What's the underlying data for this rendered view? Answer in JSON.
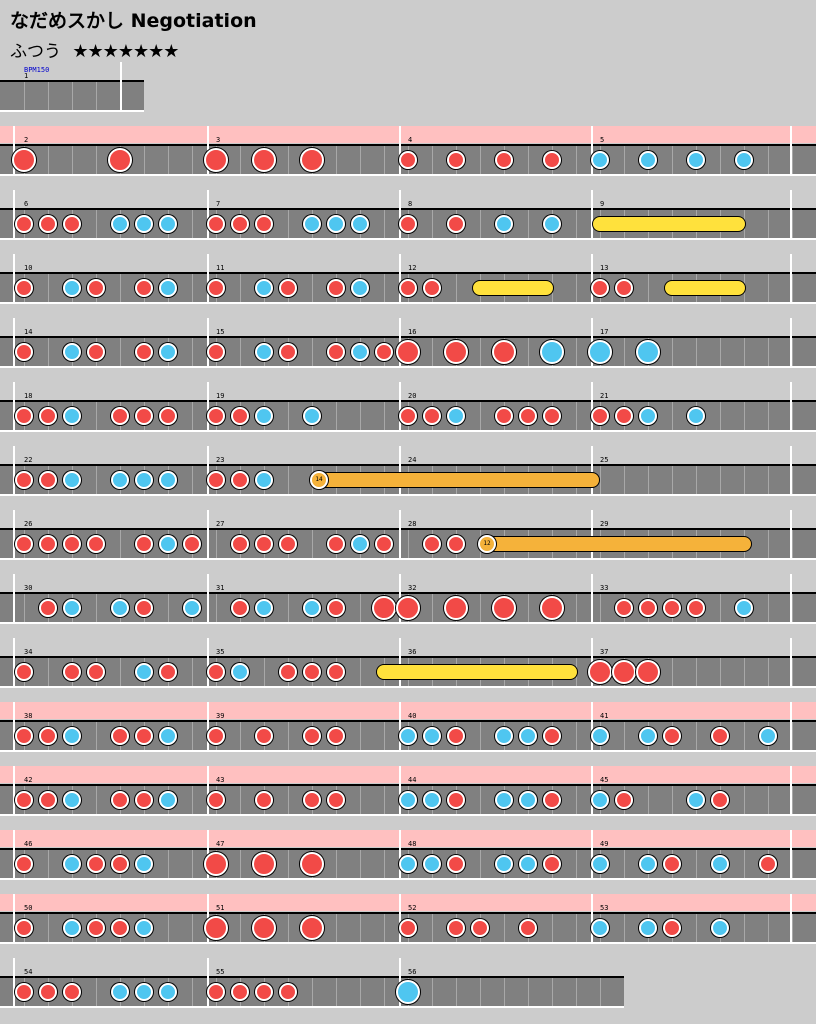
{
  "song": {
    "title": "なだめスかし Negotiation",
    "difficulty_label": "ふつう",
    "stars": "★★★★★★★",
    "bpm_label": "BPM150"
  },
  "colors": {
    "background": "#cccccc",
    "track": "#808080",
    "gogo": "#ffc0c0",
    "don": "#f24a47",
    "ka": "#4fc6f0",
    "drumroll": "#ffe13c",
    "balloon": "#f5b23a"
  },
  "measures": [
    {
      "n": "1",
      "gogo": false,
      "notes": ""
    },
    {
      "n": "2",
      "gogo": true,
      "notes": "D000D000"
    },
    {
      "n": "3",
      "gogo": true,
      "notes": "D0D0D000"
    },
    {
      "n": "4",
      "gogo": true,
      "notes": "d0d0d0d0"
    },
    {
      "n": "5",
      "gogo": true,
      "notes": "k0k0k0k0"
    },
    {
      "n": "6",
      "gogo": false,
      "notes": "ddd0kkk0"
    },
    {
      "n": "7",
      "gogo": false,
      "notes": "ddd0kkk0"
    },
    {
      "n": "8",
      "gogo": false,
      "notes": "d0d0k0k0"
    },
    {
      "n": "9",
      "gogo": false,
      "notes": "R"
    },
    {
      "n": "10",
      "gogo": false,
      "notes": "d0kd0dk0"
    },
    {
      "n": "11",
      "gogo": false,
      "notes": "d0kd0dk0"
    },
    {
      "n": "12",
      "gogo": false,
      "notes": "dd"
    },
    {
      "n": "13",
      "gogo": false,
      "notes": "dd"
    },
    {
      "n": "14",
      "gogo": false,
      "notes": "d0kd0dk0"
    },
    {
      "n": "15",
      "gogo": false,
      "notes": "d0kd0dkd"
    },
    {
      "n": "16",
      "gogo": false,
      "notes": "D0D0D0K0"
    },
    {
      "n": "17",
      "gogo": false,
      "notes": "K0K00000"
    },
    {
      "n": "18",
      "gogo": false,
      "notes": "ddk0ddd0"
    },
    {
      "n": "19",
      "gogo": false,
      "notes": "ddk0k000"
    },
    {
      "n": "20",
      "gogo": false,
      "notes": "ddk0ddd0"
    },
    {
      "n": "21",
      "gogo": false,
      "notes": "ddk0k000"
    },
    {
      "n": "22",
      "gogo": false,
      "notes": "ddk0kkk0"
    },
    {
      "n": "23",
      "gogo": false,
      "notes": "ddk0B"
    },
    {
      "n": "24",
      "gogo": false,
      "notes": ""
    },
    {
      "n": "25",
      "gogo": false,
      "notes": ""
    },
    {
      "n": "26",
      "gogo": false,
      "notes": "dddd0dkd"
    },
    {
      "n": "27",
      "gogo": false,
      "notes": "0ddd0dkd"
    },
    {
      "n": "28",
      "gogo": false,
      "notes": "0ddB"
    },
    {
      "n": "29",
      "gogo": false,
      "notes": ""
    },
    {
      "n": "30",
      "gogo": false,
      "notes": "0dk0kd0k"
    },
    {
      "n": "31",
      "gogo": false,
      "notes": "0dk0kd0D"
    },
    {
      "n": "32",
      "gogo": false,
      "notes": "D0D0D0D0"
    },
    {
      "n": "33",
      "gogo": false,
      "notes": "0dddd0k0"
    },
    {
      "n": "34",
      "gogo": false,
      "notes": "d0dd0kd0"
    },
    {
      "n": "35",
      "gogo": false,
      "notes": "dk0ddd"
    },
    {
      "n": "36",
      "gogo": false,
      "notes": ""
    },
    {
      "n": "37",
      "gogo": false,
      "notes": "DDD"
    },
    {
      "n": "38",
      "gogo": true,
      "notes": "ddk0ddk0"
    },
    {
      "n": "39",
      "gogo": true,
      "notes": "d0d0dd00"
    },
    {
      "n": "40",
      "gogo": true,
      "notes": "kkd0kkd0"
    },
    {
      "n": "41",
      "gogo": true,
      "notes": "k0kd0d0k"
    },
    {
      "n": "42",
      "gogo": true,
      "notes": "ddk0ddk0"
    },
    {
      "n": "43",
      "gogo": true,
      "notes": "d0d0dd00"
    },
    {
      "n": "44",
      "gogo": true,
      "notes": "kkd0kkd0"
    },
    {
      "n": "45",
      "gogo": true,
      "notes": "kd00kd00"
    },
    {
      "n": "46",
      "gogo": true,
      "notes": "d0kddk00"
    },
    {
      "n": "47",
      "gogo": true,
      "notes": "D0D0D000"
    },
    {
      "n": "48",
      "gogo": true,
      "notes": "kkd0kkd0"
    },
    {
      "n": "49",
      "gogo": true,
      "notes": "k0kd0k0d"
    },
    {
      "n": "50",
      "gogo": true,
      "notes": "d0kddk00"
    },
    {
      "n": "51",
      "gogo": true,
      "notes": "D0D0D000"
    },
    {
      "n": "52",
      "gogo": true,
      "notes": "d0dd0d00"
    },
    {
      "n": "53",
      "gogo": true,
      "notes": "k0kd0k00"
    },
    {
      "n": "54",
      "gogo": false,
      "notes": "ddd0kkk0"
    },
    {
      "n": "55",
      "gogo": false,
      "notes": "dddd0"
    },
    {
      "n": "56",
      "gogo": false,
      "notes": "K"
    }
  ],
  "rolls": [
    {
      "kind": "drumroll",
      "from_measure": "9",
      "to_measure": "9"
    },
    {
      "kind": "drumroll",
      "from_measure": "12",
      "to_measure": "12"
    },
    {
      "kind": "drumroll",
      "from_measure": "13",
      "to_measure": "13"
    },
    {
      "kind": "balloon",
      "from_measure": "23",
      "to_measure": "25",
      "count": "14"
    },
    {
      "kind": "balloon",
      "from_measure": "28",
      "to_measure": "29",
      "count": "12"
    },
    {
      "kind": "drumroll",
      "from_measure": "35",
      "to_measure": "36"
    }
  ]
}
